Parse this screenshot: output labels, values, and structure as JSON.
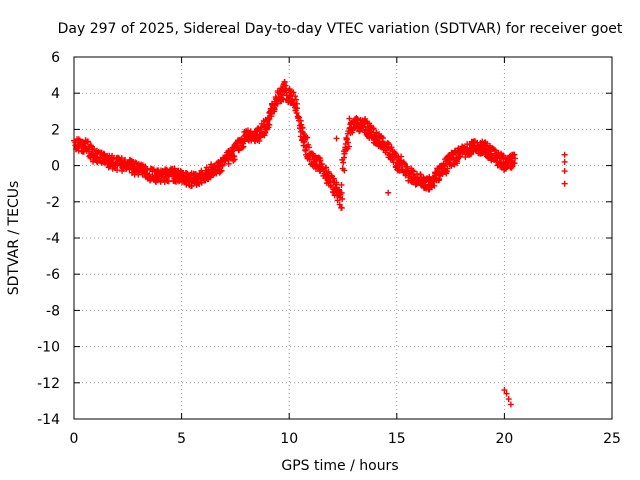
{
  "chart_data": {
    "type": "scatter",
    "title": "Day 297 of 2025, Sidereal Day-to-day VTEC variation (SDTVAR) for receiver goet",
    "xlabel": "GPS time / hours",
    "ylabel": "SDTVAR / TECUs",
    "xlim": [
      0,
      25
    ],
    "ylim": [
      -14,
      6
    ],
    "xticks": [
      0,
      5,
      10,
      15,
      20,
      25
    ],
    "yticks": [
      -14,
      -12,
      -10,
      -8,
      -6,
      -4,
      -2,
      0,
      2,
      4,
      6
    ],
    "grid": true,
    "marker": "+",
    "color": "#ff0000",
    "series": [
      {
        "name": "SDTVAR",
        "trend": [
          [
            0.0,
            1.0
          ],
          [
            0.3,
            1.2
          ],
          [
            0.7,
            0.9
          ],
          [
            1.0,
            0.5
          ],
          [
            1.5,
            0.3
          ],
          [
            2.0,
            0.1
          ],
          [
            2.5,
            0.0
          ],
          [
            3.0,
            -0.2
          ],
          [
            3.5,
            -0.5
          ],
          [
            4.0,
            -0.6
          ],
          [
            4.5,
            -0.5
          ],
          [
            5.0,
            -0.6
          ],
          [
            5.5,
            -0.8
          ],
          [
            6.0,
            -0.6
          ],
          [
            6.5,
            -0.2
          ],
          [
            7.0,
            0.2
          ],
          [
            7.5,
            0.8
          ],
          [
            8.0,
            1.6
          ],
          [
            8.5,
            1.6
          ],
          [
            9.0,
            2.3
          ],
          [
            9.5,
            3.8
          ],
          [
            9.8,
            4.2
          ],
          [
            10.2,
            3.5
          ],
          [
            10.6,
            1.8
          ],
          [
            11.0,
            0.4
          ],
          [
            11.4,
            0.0
          ],
          [
            11.8,
            -0.6
          ],
          [
            12.2,
            -1.4
          ],
          [
            12.4,
            -1.8
          ],
          [
            12.6,
            1.0
          ],
          [
            13.0,
            2.3
          ],
          [
            13.5,
            2.2
          ],
          [
            14.0,
            1.6
          ],
          [
            14.5,
            1.0
          ],
          [
            15.0,
            0.2
          ],
          [
            15.5,
            -0.4
          ],
          [
            16.0,
            -0.8
          ],
          [
            16.5,
            -1.0
          ],
          [
            17.0,
            -0.4
          ],
          [
            17.5,
            0.3
          ],
          [
            18.0,
            0.7
          ],
          [
            18.5,
            1.0
          ],
          [
            19.0,
            1.0
          ],
          [
            19.5,
            0.6
          ],
          [
            20.0,
            0.1
          ],
          [
            20.5,
            0.3
          ]
        ],
        "extra_points": [
          [
            12.2,
            1.5
          ],
          [
            12.8,
            2.6
          ],
          [
            14.6,
            -1.5
          ],
          [
            15.2,
            0.5
          ],
          [
            20.0,
            -12.4
          ],
          [
            20.1,
            -12.6
          ],
          [
            20.2,
            -12.9
          ],
          [
            20.3,
            -13.2
          ],
          [
            22.8,
            0.6
          ],
          [
            22.8,
            0.2
          ],
          [
            22.8,
            -0.3
          ],
          [
            22.8,
            -1.0
          ]
        ]
      }
    ]
  }
}
